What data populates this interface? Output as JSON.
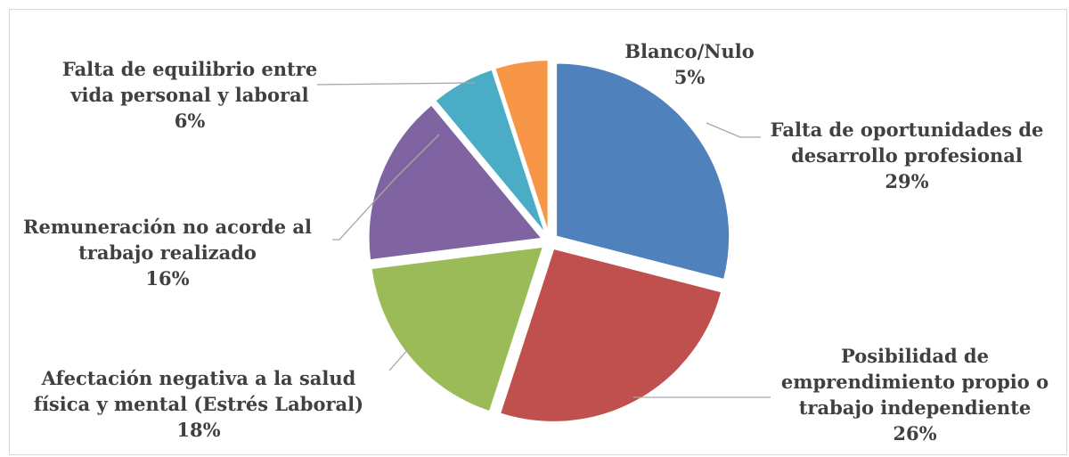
{
  "chart_data": {
    "type": "pie",
    "title": "",
    "slices": [
      {
        "name": "Falta de oportunidades de desarrollo profesional",
        "label_lines": [
          "Falta de oportunidades de",
          "desarrollo profesional"
        ],
        "percent_label": "29%",
        "value": 29,
        "color": "#4f81bd"
      },
      {
        "name": "Posibilidad de emprendimiento propio o trabajo independiente",
        "label_lines": [
          "Posibilidad de",
          "emprendimiento propio o",
          "trabajo independiente"
        ],
        "percent_label": "26%",
        "value": 26,
        "color": "#c0504d"
      },
      {
        "name": "Afectación negativa a la salud física y mental (Estrés Laboral)",
        "label_lines": [
          "Afectación negativa a la salud",
          "física y mental (Estrés Laboral)"
        ],
        "percent_label": "18%",
        "value": 18,
        "color": "#9bbb59"
      },
      {
        "name": "Remuneración no acorde al trabajo realizado",
        "label_lines": [
          "Remuneración no acorde al",
          "trabajo realizado"
        ],
        "percent_label": "16%",
        "value": 16,
        "color": "#8064a2"
      },
      {
        "name": "Falta de equilibrio entre vida personal y laboral",
        "label_lines": [
          "Falta de equilibrio entre",
          "vida personal y laboral"
        ],
        "percent_label": "6%",
        "value": 6,
        "color": "#4bacc6"
      },
      {
        "name": "Blanco/Nulo",
        "label_lines": [
          "Blanco/Nulo"
        ],
        "percent_label": "5%",
        "value": 5,
        "color": "#f79646"
      }
    ],
    "legend": "none",
    "exploded": true
  }
}
